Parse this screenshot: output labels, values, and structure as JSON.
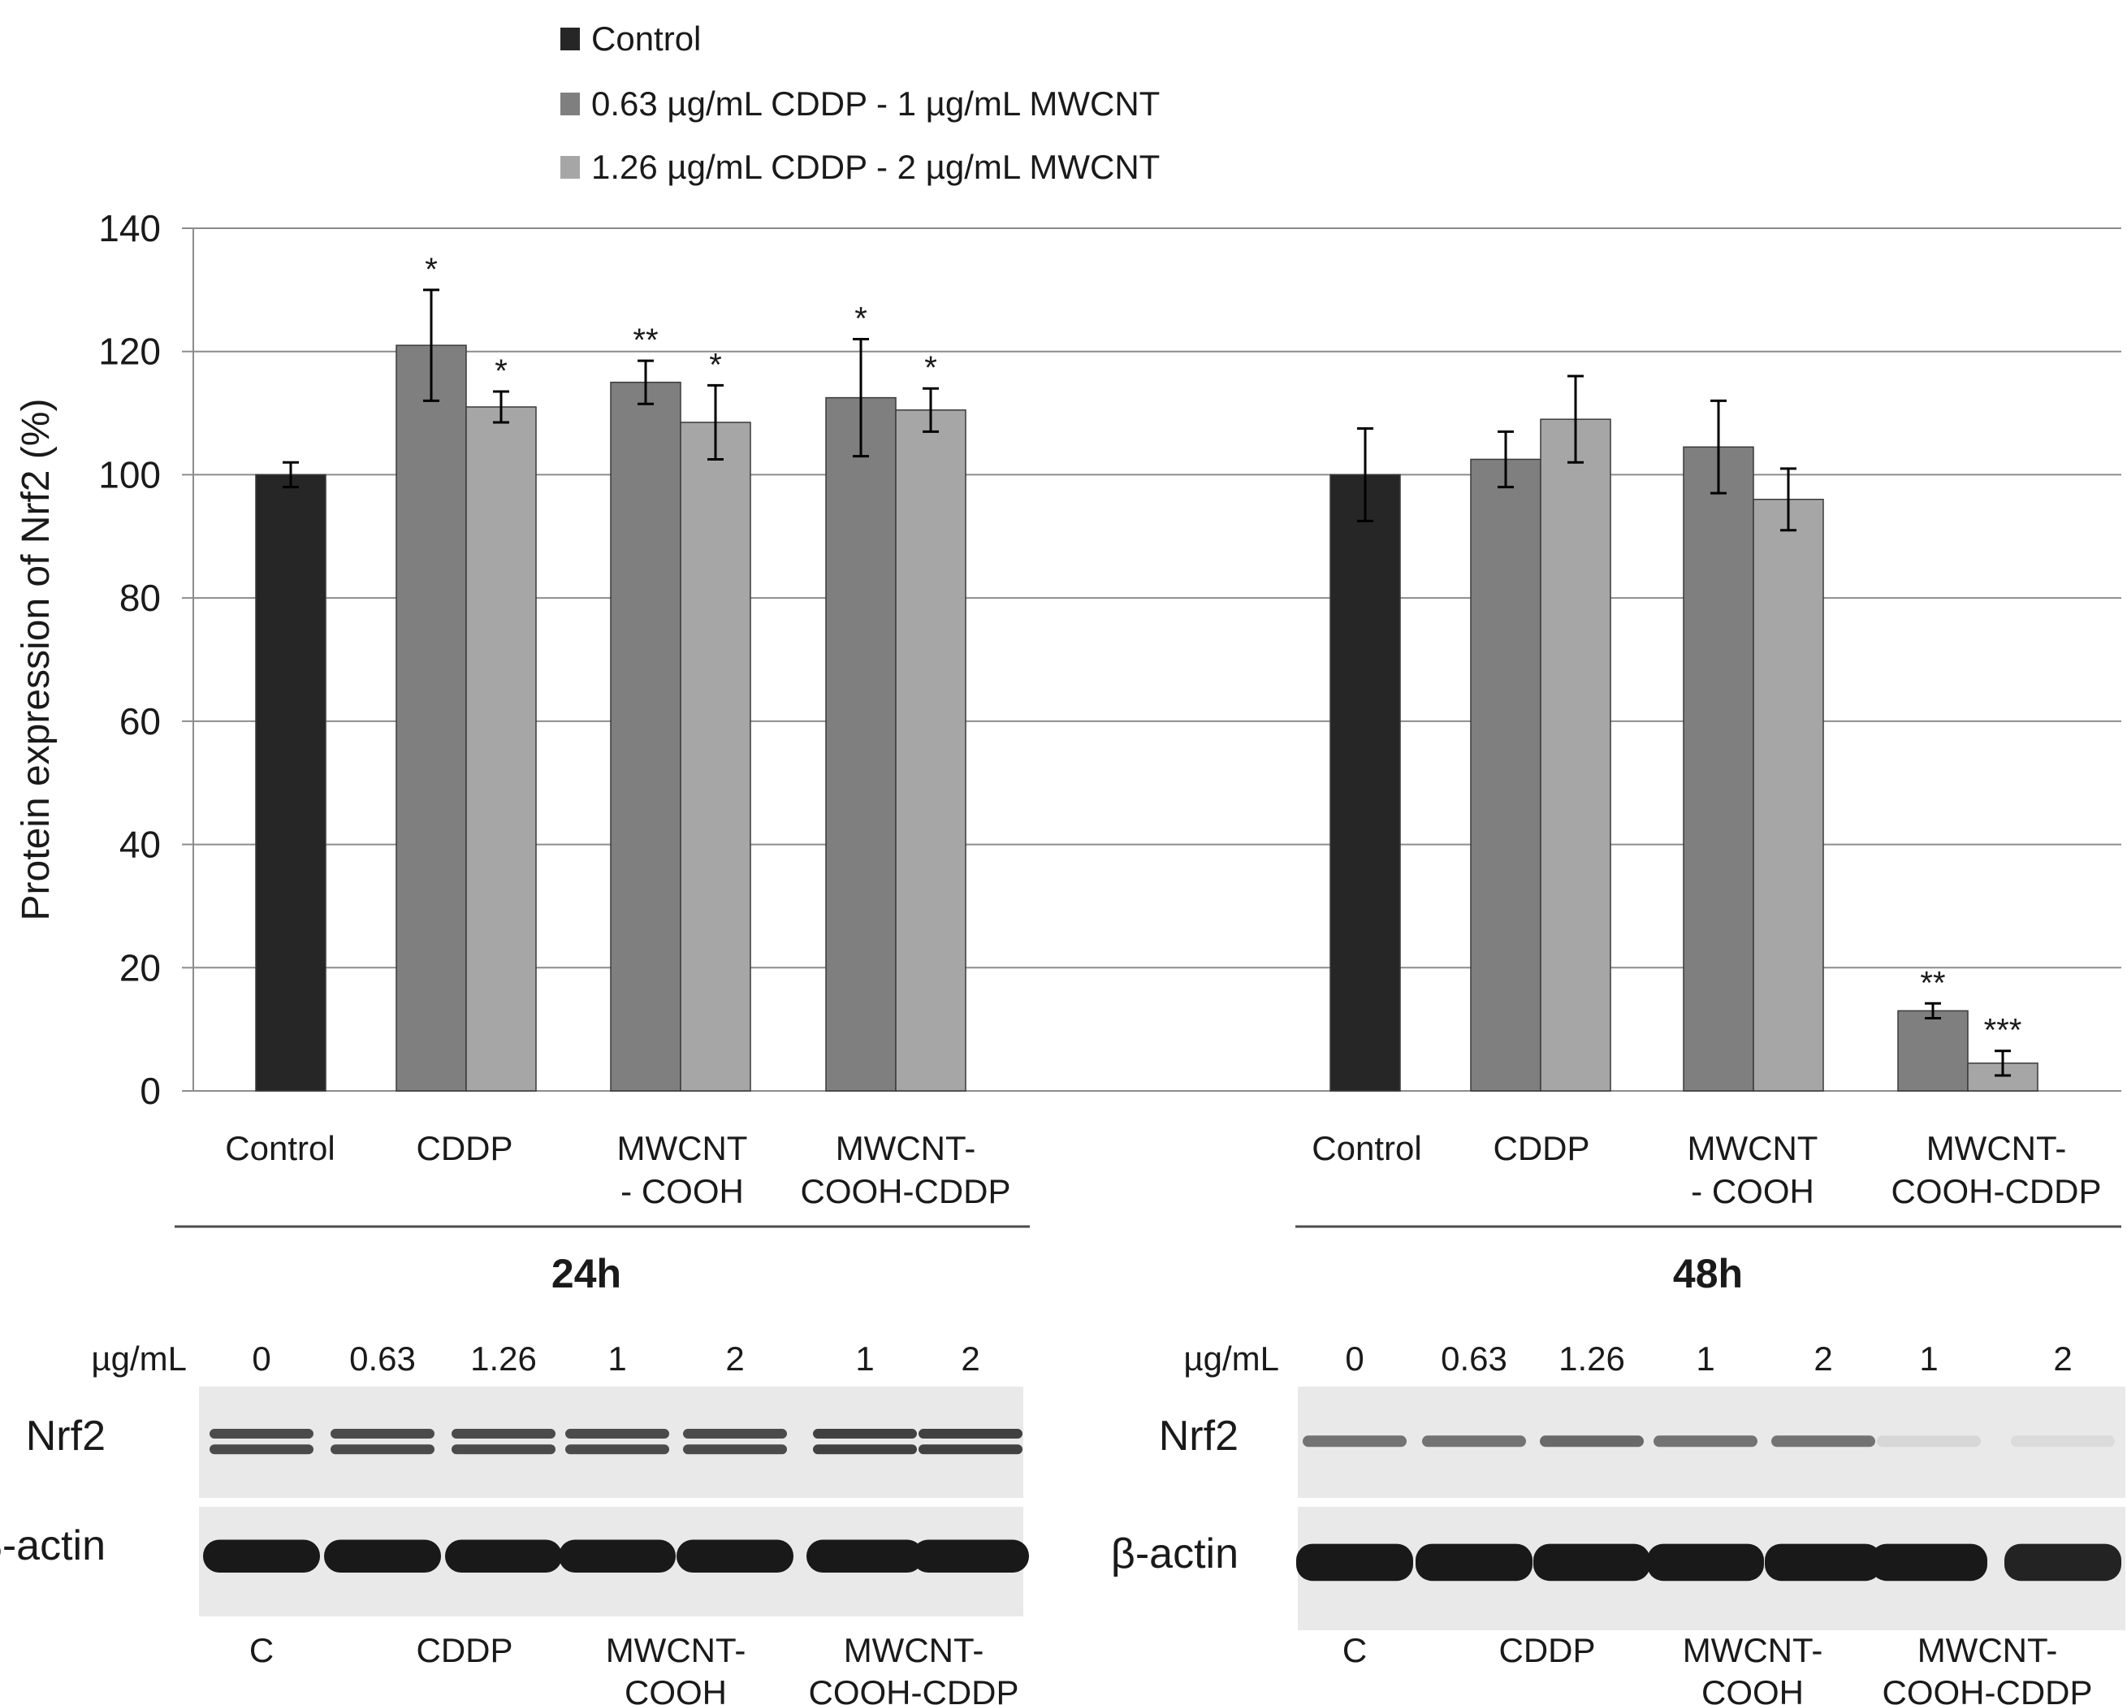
{
  "chart_data": {
    "type": "bar",
    "ylabel": "Protein expression of Nrf2 (%)",
    "ylim": [
      0,
      140
    ],
    "yticks": [
      0,
      20,
      40,
      60,
      80,
      100,
      120,
      140
    ],
    "grid": true,
    "legend_position": "top-left",
    "series": [
      {
        "name": "Control",
        "color": "#262626"
      },
      {
        "name": "0.63 µg/mL CDDP - 1 µg/mL MWCNT",
        "color": "#7f7f7f"
      },
      {
        "name": "1.26 µg/mL CDDP - 2 µg/mL MWCNT",
        "color": "#a6a6a6"
      }
    ],
    "groups": [
      {
        "label": "24h",
        "categories": [
          {
            "label": [
              "Control"
            ],
            "bars": [
              {
                "series": 0,
                "value": 100,
                "err": 2,
                "sig": ""
              }
            ]
          },
          {
            "label": [
              "CDDP"
            ],
            "bars": [
              {
                "series": 1,
                "value": 121,
                "err": 9,
                "sig": "*"
              },
              {
                "series": 2,
                "value": 111,
                "err": 2.5,
                "sig": "*"
              }
            ]
          },
          {
            "label": [
              "MWCNT",
              "- COOH"
            ],
            "bars": [
              {
                "series": 1,
                "value": 115,
                "err": 3.5,
                "sig": "**"
              },
              {
                "series": 2,
                "value": 108.5,
                "err": 6,
                "sig": "*"
              }
            ]
          },
          {
            "label": [
              "MWCNT-",
              "COOH-CDDP"
            ],
            "bars": [
              {
                "series": 1,
                "value": 112.5,
                "err": 9.5,
                "sig": "*"
              },
              {
                "series": 2,
                "value": 110.5,
                "err": 3.5,
                "sig": "*"
              }
            ]
          }
        ]
      },
      {
        "label": "48h",
        "categories": [
          {
            "label": [
              "Control"
            ],
            "bars": [
              {
                "series": 0,
                "value": 100,
                "err": 7.5,
                "sig": ""
              }
            ]
          },
          {
            "label": [
              "CDDP"
            ],
            "bars": [
              {
                "series": 1,
                "value": 102.5,
                "err": 4.5,
                "sig": ""
              },
              {
                "series": 2,
                "value": 109,
                "err": 7,
                "sig": ""
              }
            ]
          },
          {
            "label": [
              "MWCNT",
              "- COOH"
            ],
            "bars": [
              {
                "series": 1,
                "value": 104.5,
                "err": 7.5,
                "sig": ""
              },
              {
                "series": 2,
                "value": 96,
                "err": 5,
                "sig": ""
              }
            ]
          },
          {
            "label": [
              "MWCNT-",
              "COOH-CDDP"
            ],
            "bars": [
              {
                "series": 1,
                "value": 13,
                "err": 1.2,
                "sig": "**"
              },
              {
                "series": 2,
                "value": 4.5,
                "err": 2,
                "sig": "***"
              }
            ]
          }
        ]
      }
    ]
  },
  "blots": [
    {
      "panel": "24h",
      "unit_label": "µg/mL",
      "doses": [
        "0",
        "0.63",
        "1.26",
        "1",
        "2",
        "1",
        "2"
      ],
      "rows": [
        {
          "name": "Nrf2",
          "lane_intensity": [
            0.75,
            0.75,
            0.75,
            0.75,
            0.75,
            0.8,
            0.8
          ],
          "double_band": true
        },
        {
          "name": "β-actin",
          "lane_intensity": [
            1,
            1,
            1,
            1,
            1,
            1,
            1
          ],
          "double_band": false
        }
      ],
      "treatments": [
        [
          "C"
        ],
        [
          "CDDP"
        ],
        [
          "MWCNT-",
          "COOH"
        ],
        [
          "MWCNT-",
          "COOH-CDDP"
        ]
      ]
    },
    {
      "panel": "48h",
      "unit_label": "µg/mL",
      "doses": [
        "0",
        "0.63",
        "1.26",
        "1",
        "2",
        "1",
        "2"
      ],
      "rows": [
        {
          "name": "Nrf2",
          "lane_intensity": [
            0.55,
            0.55,
            0.6,
            0.55,
            0.55,
            0.05,
            0.03
          ],
          "double_band": false
        },
        {
          "name": "β-actin",
          "lane_intensity": [
            1,
            1,
            1,
            1,
            1,
            1,
            0.95
          ],
          "double_band": false
        }
      ],
      "treatments": [
        [
          "C"
        ],
        [
          "CDDP"
        ],
        [
          "MWCNT-",
          "COOH"
        ],
        [
          "MWCNT-",
          "COOH-CDDP"
        ]
      ]
    }
  ]
}
